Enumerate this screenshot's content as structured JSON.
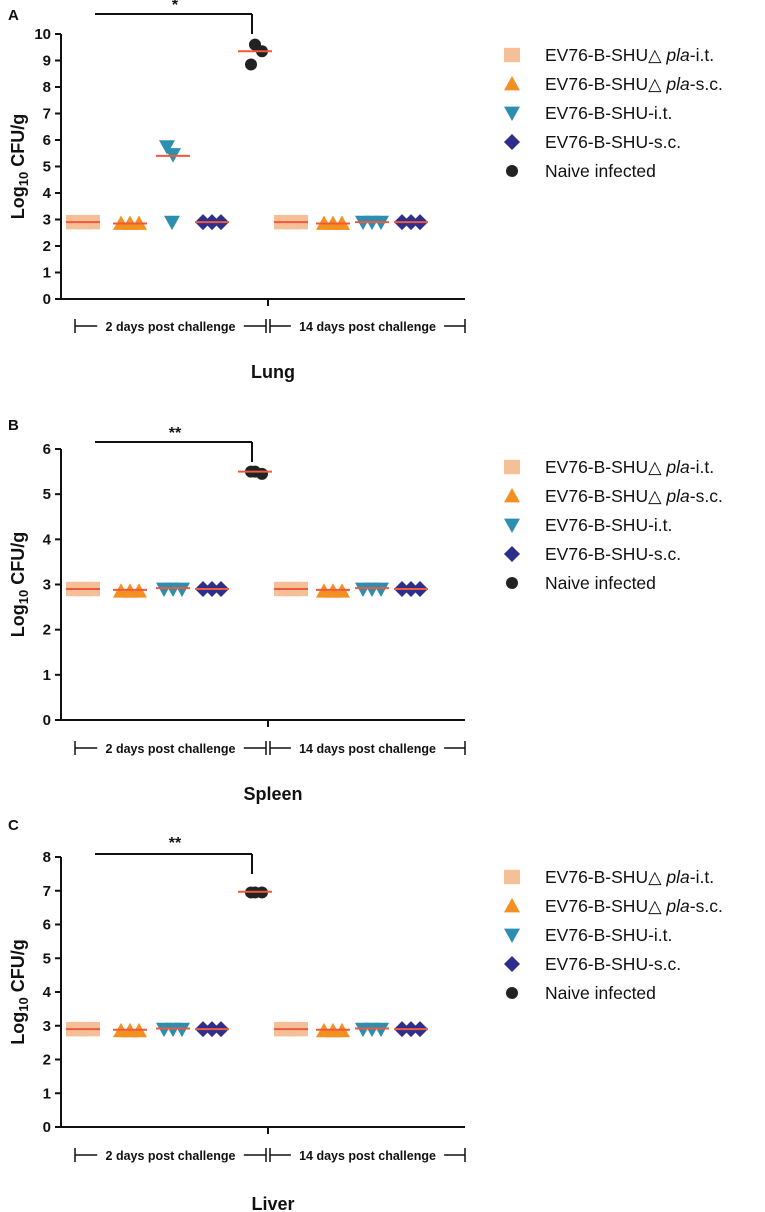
{
  "legend_items": [
    {
      "label": "EV76-B-SHU△ ",
      "italic": "pla",
      "suffix": "-i.t.",
      "shape": "square",
      "color": "#f5c098"
    },
    {
      "label": "EV76-B-SHU△ ",
      "italic": "pla",
      "suffix": "-s.c.",
      "shape": "triangle-up",
      "color": "#f39021"
    },
    {
      "label": "EV76-B-SHU-i.t.",
      "italic": "",
      "suffix": "",
      "shape": "triangle-down",
      "color": "#2d8fb0"
    },
    {
      "label": "EV76-B-SHU-s.c.",
      "italic": "",
      "suffix": "",
      "shape": "diamond",
      "color": "#2e2f8c"
    },
    {
      "label": "Naive infected",
      "italic": "",
      "suffix": "",
      "shape": "circle",
      "color": "#222222"
    }
  ],
  "groups": [
    "2 days post challenge",
    "14 days post challenge"
  ],
  "median_color": "#f05a3c",
  "chart_data": [
    {
      "type": "scatter",
      "panel": "A",
      "title": "Lung",
      "ylabel": "Log10 CFU/g",
      "ylim": [
        0,
        10
      ],
      "yticks": [
        0,
        1,
        2,
        3,
        4,
        5,
        6,
        7,
        8,
        9,
        10
      ],
      "significance": "*",
      "series": [
        {
          "name": "EV76-B-SHU△ pla-i.t.",
          "day2": [
            2.9,
            2.9,
            2.9
          ],
          "day2_median": 2.9,
          "day14": [
            2.9,
            2.9,
            2.9
          ],
          "day14_median": 2.9
        },
        {
          "name": "EV76-B-SHU△ pla-s.c.",
          "day2": [
            2.85,
            2.85,
            2.85
          ],
          "day2_median": 2.85,
          "day14": [
            2.85,
            2.85,
            2.85
          ],
          "day14_median": 2.85
        },
        {
          "name": "EV76-B-SHU-i.t.",
          "day2": [
            5.75,
            5.45,
            2.9
          ],
          "day2_median": 5.4,
          "day14": [
            2.9,
            2.9,
            2.9
          ],
          "day14_median": 2.9
        },
        {
          "name": "EV76-B-SHU-s.c.",
          "day2": [
            2.9,
            2.9,
            2.9
          ],
          "day2_median": 2.9,
          "day14": [
            2.9,
            2.9,
            2.9
          ],
          "day14_median": 2.9
        },
        {
          "name": "Naive infected",
          "day2": [
            9.6,
            9.35,
            8.85
          ],
          "day2_median": 9.35,
          "day14": [],
          "day14_median": null
        }
      ]
    },
    {
      "type": "scatter",
      "panel": "B",
      "title": "Spleen",
      "ylabel": "Log10 CFU/g",
      "ylim": [
        0,
        6
      ],
      "yticks": [
        0,
        1,
        2,
        3,
        4,
        5,
        6
      ],
      "significance": "**",
      "series": [
        {
          "name": "EV76-B-SHU△ pla-i.t.",
          "day2": [
            2.9,
            2.9,
            2.9
          ],
          "day2_median": 2.9,
          "day14": [
            2.9,
            2.9,
            2.9
          ],
          "day14_median": 2.9
        },
        {
          "name": "EV76-B-SHU△ pla-s.c.",
          "day2": [
            2.85,
            2.85,
            2.85
          ],
          "day2_median": 2.88,
          "day14": [
            2.85,
            2.85,
            2.85
          ],
          "day14_median": 2.88
        },
        {
          "name": "EV76-B-SHU-i.t.",
          "day2": [
            2.9,
            2.9,
            2.9
          ],
          "day2_median": 2.92,
          "day14": [
            2.9,
            2.9,
            2.9
          ],
          "day14_median": 2.92
        },
        {
          "name": "EV76-B-SHU-s.c.",
          "day2": [
            2.9,
            2.9,
            2.9
          ],
          "day2_median": 2.9,
          "day14": [
            2.9,
            2.9,
            2.9
          ],
          "day14_median": 2.9
        },
        {
          "name": "Naive infected",
          "day2": [
            5.5,
            5.45,
            5.5
          ],
          "day2_median": 5.5,
          "day14": [],
          "day14_median": null
        }
      ]
    },
    {
      "type": "scatter",
      "panel": "C",
      "title": "Liver",
      "ylabel": "Log10 CFU/g",
      "ylim": [
        0,
        8
      ],
      "yticks": [
        0,
        1,
        2,
        3,
        4,
        5,
        6,
        7,
        8
      ],
      "significance": "**",
      "series": [
        {
          "name": "EV76-B-SHU△ pla-i.t.",
          "day2": [
            2.9,
            2.9,
            2.9
          ],
          "day2_median": 2.9,
          "day14": [
            2.9,
            2.9,
            2.9
          ],
          "day14_median": 2.9
        },
        {
          "name": "EV76-B-SHU△ pla-s.c.",
          "day2": [
            2.85,
            2.85,
            2.85
          ],
          "day2_median": 2.88,
          "day14": [
            2.85,
            2.85,
            2.85
          ],
          "day14_median": 2.88
        },
        {
          "name": "EV76-B-SHU-i.t.",
          "day2": [
            2.9,
            2.9,
            2.9
          ],
          "day2_median": 2.92,
          "day14": [
            2.9,
            2.9,
            2.9
          ],
          "day14_median": 2.92
        },
        {
          "name": "EV76-B-SHU-s.c.",
          "day2": [
            2.9,
            2.9,
            2.9
          ],
          "day2_median": 2.9,
          "day14": [
            2.9,
            2.9,
            2.9
          ],
          "day14_median": 2.9
        },
        {
          "name": "Naive infected",
          "day2": [
            6.95,
            6.95,
            6.95
          ],
          "day2_median": 6.97,
          "day14": [],
          "day14_median": null
        }
      ]
    }
  ]
}
